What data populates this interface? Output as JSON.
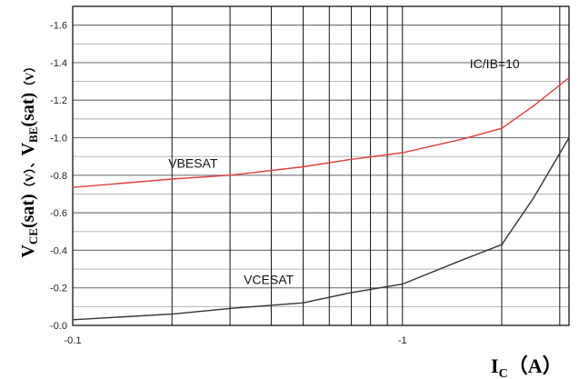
{
  "chart_data": {
    "type": "line",
    "xscale": "log",
    "xlim": [
      0.1,
      3.2
    ],
    "ylim": [
      0.0,
      -1.7
    ],
    "grid": true,
    "x_ticks": [
      {
        "value": 0.1,
        "label": "-0.1"
      },
      {
        "value": 1,
        "label": "-1"
      }
    ],
    "y_ticks": [
      {
        "value": 0.0,
        "label": "-0.0"
      },
      {
        "value": -0.2,
        "label": "-0.2"
      },
      {
        "value": -0.4,
        "label": "-0.4"
      },
      {
        "value": -0.6,
        "label": "-0.6"
      },
      {
        "value": -0.8,
        "label": "-0.8"
      },
      {
        "value": -1.0,
        "label": "-1.0"
      },
      {
        "value": -1.2,
        "label": "-1.2"
      },
      {
        "value": -1.4,
        "label": "-1.4"
      },
      {
        "value": -1.6,
        "label": "-1.6"
      }
    ],
    "xlabel": {
      "main": "I",
      "sub": "C",
      "tail": "（A）"
    },
    "ylabel": {
      "p1": "V",
      "p1_sub": "CE",
      "p2": "(sat)",
      "p3": "（V）、",
      "p4": "V",
      "p4_sub": "BE",
      "p5": "(sat)",
      "p6": "（V）"
    },
    "annotations": [
      {
        "text": "IC/IB=10",
        "x": 1.6,
        "y": -1.37
      },
      {
        "text": "VBESAT",
        "x": 0.195,
        "y": -0.84
      },
      {
        "text": "VCESAT",
        "x": 0.33,
        "y": -0.22
      }
    ],
    "series": [
      {
        "key": "vbesat",
        "color": "#e0403a",
        "x": [
          0.1,
          0.2,
          0.3,
          0.5,
          0.7,
          1.0,
          1.5,
          2.0,
          2.5,
          3.2
        ],
        "y": [
          -0.735,
          -0.78,
          -0.8,
          -0.845,
          -0.885,
          -0.92,
          -0.99,
          -1.05,
          -1.17,
          -1.32
        ]
      },
      {
        "key": "vcesat",
        "color": "#333333",
        "x": [
          0.1,
          0.2,
          0.3,
          0.5,
          0.7,
          1.0,
          1.5,
          2.0,
          2.5,
          3.2
        ],
        "y": [
          -0.03,
          -0.06,
          -0.09,
          -0.12,
          -0.175,
          -0.22,
          -0.345,
          -0.43,
          -0.68,
          -1.0
        ]
      }
    ]
  }
}
